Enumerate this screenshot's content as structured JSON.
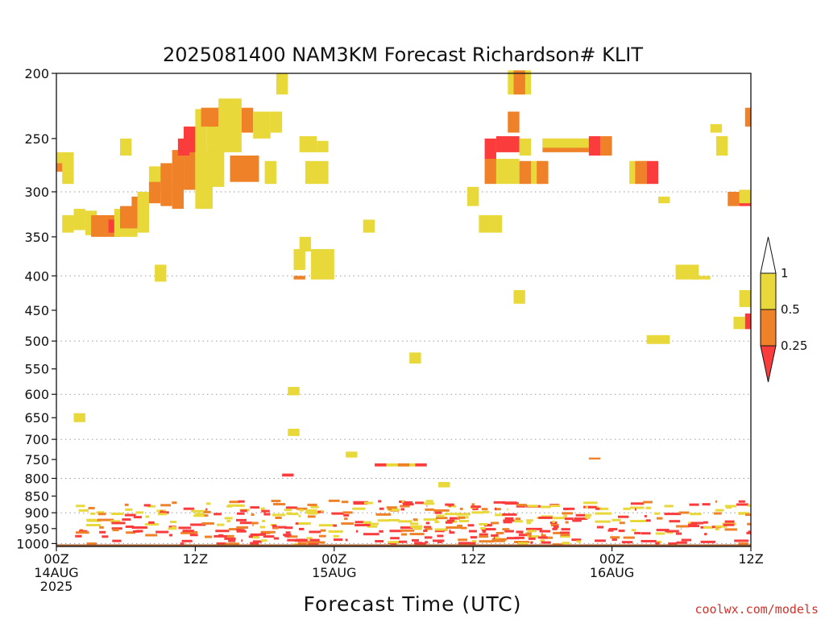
{
  "chart_data": {
    "type": "heatmap",
    "title": "2025081400 NAM3KM Forecast Richardson# KLIT",
    "xlabel": "Forecast Time (UTC)",
    "ylabel": "",
    "x_unit": "forecast hour from 2025-08-14 00Z",
    "xlim": [
      0,
      60
    ],
    "x_ticks": [
      {
        "value": 0,
        "lines": [
          "00Z",
          "14AUG",
          "2025"
        ]
      },
      {
        "value": 12,
        "lines": [
          "12Z"
        ]
      },
      {
        "value": 24,
        "lines": [
          "00Z",
          "15AUG"
        ]
      },
      {
        "value": 36,
        "lines": [
          "12Z"
        ]
      },
      {
        "value": 48,
        "lines": [
          "00Z",
          "16AUG"
        ]
      },
      {
        "value": 60,
        "lines": [
          "12Z"
        ]
      }
    ],
    "y_scale": "log-pressure (hPa, inverted)",
    "ylim": [
      1010,
      200
    ],
    "y_ticks": [
      200,
      250,
      300,
      350,
      400,
      450,
      500,
      550,
      600,
      650,
      700,
      750,
      800,
      850,
      900,
      950,
      1000
    ],
    "gridlines_hPa": [
      300,
      400,
      500,
      600,
      700,
      800,
      900,
      1000
    ],
    "grid": "dotted horizontal",
    "legend": {
      "placement": "right",
      "levels": [
        {
          "label": "1",
          "value": 1,
          "color": "#ffffff"
        },
        {
          "label": "0.5",
          "value": 0.5,
          "color": "#e8d83a"
        },
        {
          "label": "0.25",
          "value": 0.25,
          "color": "#ef8228"
        }
      ],
      "below_color": "#fa3c3c"
    },
    "colors": {
      "yellow": "#e8d83a",
      "orange": "#ef8228",
      "red": "#fa3c3c",
      "ground": "#9e5a2d"
    },
    "cells_note": "each cell: [forecast_hour_start, forecast_hour_end, pressure_top_hPa, pressure_bottom_hPa, category] with category y=0.25-0.5, o=0.25-0.5 orange band, r=below 0.25",
    "cells": [
      [
        0.0,
        1.5,
        262,
        280,
        "y"
      ],
      [
        0.0,
        0.5,
        272,
        280,
        "o"
      ],
      [
        0.5,
        1.5,
        280,
        292,
        "y"
      ],
      [
        0.5,
        1.5,
        325,
        345,
        "y"
      ],
      [
        1.5,
        2.5,
        318,
        342,
        "y"
      ],
      [
        2.5,
        3.5,
        320,
        348,
        "y"
      ],
      [
        3.0,
        5.5,
        325,
        350,
        "o"
      ],
      [
        4.5,
        5.5,
        330,
        345,
        "r"
      ],
      [
        5.0,
        7.0,
        318,
        350,
        "y"
      ],
      [
        5.5,
        7.0,
        315,
        340,
        "o"
      ],
      [
        6.5,
        8.0,
        305,
        338,
        "o"
      ],
      [
        7.0,
        8.0,
        300,
        345,
        "y"
      ],
      [
        5.5,
        6.5,
        250,
        265,
        "y"
      ],
      [
        8.0,
        10.0,
        275,
        300,
        "y"
      ],
      [
        8.0,
        9.0,
        290,
        312,
        "o"
      ],
      [
        9.0,
        10.0,
        272,
        315,
        "o"
      ],
      [
        10.0,
        11.0,
        260,
        318,
        "o"
      ],
      [
        11.0,
        12.0,
        240,
        298,
        "o"
      ],
      [
        10.5,
        11.5,
        250,
        265,
        "r"
      ],
      [
        11.0,
        12.0,
        240,
        262,
        "r"
      ],
      [
        12.0,
        13.5,
        262,
        318,
        "y"
      ],
      [
        12.0,
        13.0,
        226,
        268,
        "y"
      ],
      [
        13.0,
        14.5,
        225,
        295,
        "y"
      ],
      [
        12.5,
        14.0,
        225,
        240,
        "o"
      ],
      [
        14.0,
        15.0,
        218,
        262,
        "y"
      ],
      [
        15.0,
        16.0,
        218,
        262,
        "y"
      ],
      [
        16.0,
        17.0,
        225,
        245,
        "o"
      ],
      [
        15.0,
        17.5,
        265,
        290,
        "o"
      ],
      [
        17.0,
        18.5,
        228,
        250,
        "y"
      ],
      [
        18.0,
        19.0,
        270,
        292,
        "y"
      ],
      [
        18.5,
        19.5,
        228,
        245,
        "y"
      ],
      [
        8.5,
        9.5,
        385,
        408,
        "y"
      ],
      [
        19.0,
        20.0,
        200,
        215,
        "y"
      ],
      [
        20.5,
        21.5,
        365,
        392,
        "y"
      ],
      [
        20.5,
        21.5,
        400,
        405,
        "o"
      ],
      [
        21.0,
        22.0,
        350,
        368,
        "y"
      ],
      [
        21.5,
        23.5,
        270,
        292,
        "y"
      ],
      [
        21.0,
        22.5,
        248,
        262,
        "y"
      ],
      [
        22.5,
        23.5,
        252,
        262,
        "y"
      ],
      [
        22.0,
        24.0,
        365,
        405,
        "y"
      ],
      [
        26.5,
        27.5,
        330,
        345,
        "y"
      ],
      [
        20.0,
        21.0,
        585,
        602,
        "y"
      ],
      [
        20.0,
        21.0,
        675,
        692,
        "y"
      ],
      [
        25.0,
        26.0,
        730,
        745,
        "y"
      ],
      [
        30.5,
        31.5,
        520,
        540,
        "y"
      ],
      [
        1.5,
        2.5,
        640,
        660,
        "y"
      ],
      [
        35.5,
        36.5,
        295,
        315,
        "y"
      ],
      [
        36.5,
        38.5,
        325,
        345,
        "y"
      ],
      [
        37.0,
        38.0,
        250,
        270,
        "r"
      ],
      [
        37.0,
        38.0,
        268,
        292,
        "o"
      ],
      [
        38.0,
        40.0,
        248,
        262,
        "r"
      ],
      [
        38.0,
        40.0,
        268,
        292,
        "y"
      ],
      [
        39.0,
        41.0,
        198,
        215,
        "y"
      ],
      [
        39.5,
        40.5,
        198,
        215,
        "o"
      ],
      [
        39.0,
        40.0,
        228,
        245,
        "o"
      ],
      [
        40.0,
        41.0,
        250,
        265,
        "y"
      ],
      [
        40.0,
        41.0,
        270,
        292,
        "o"
      ],
      [
        41.0,
        42.0,
        270,
        292,
        "y"
      ],
      [
        41.5,
        42.5,
        270,
        292,
        "o"
      ],
      [
        42.0,
        46.0,
        250,
        262,
        "o"
      ],
      [
        42.0,
        46.0,
        250,
        258,
        "y"
      ],
      [
        46.0,
        47.0,
        248,
        265,
        "r"
      ],
      [
        47.0,
        48.0,
        248,
        265,
        "o"
      ],
      [
        39.5,
        40.5,
        420,
        440,
        "y"
      ],
      [
        49.5,
        51.0,
        270,
        292,
        "y"
      ],
      [
        50.0,
        51.0,
        270,
        292,
        "o"
      ],
      [
        51.0,
        52.0,
        270,
        292,
        "r"
      ],
      [
        52.0,
        53.0,
        305,
        312,
        "y"
      ],
      [
        53.5,
        55.5,
        385,
        405,
        "y"
      ],
      [
        55.0,
        56.5,
        400,
        405,
        "y"
      ],
      [
        51.0,
        53.0,
        490,
        505,
        "y"
      ],
      [
        57.0,
        58.0,
        248,
        265,
        "y"
      ],
      [
        56.5,
        57.5,
        238,
        245,
        "y"
      ],
      [
        58.0,
        59.0,
        300,
        315,
        "o"
      ],
      [
        59.0,
        61.0,
        298,
        315,
        "r"
      ],
      [
        59.0,
        61.0,
        298,
        312,
        "y"
      ],
      [
        58.5,
        59.5,
        460,
        480,
        "y"
      ],
      [
        59.5,
        60.5,
        455,
        480,
        "r"
      ],
      [
        60.5,
        61.0,
        460,
        480,
        "o"
      ],
      [
        60.0,
        61.0,
        480,
        500,
        "y"
      ],
      [
        59.0,
        61.0,
        420,
        445,
        "y"
      ],
      [
        59.5,
        60.5,
        225,
        240,
        "o"
      ],
      [
        60.5,
        61.5,
        250,
        265,
        "r"
      ],
      [
        46.0,
        47.0,
        745,
        750,
        "o"
      ],
      [
        27.5,
        28.5,
        760,
        768,
        "r"
      ],
      [
        28.5,
        31.0,
        760,
        768,
        "y"
      ],
      [
        29.5,
        30.5,
        760,
        768,
        "o"
      ],
      [
        31.0,
        32.0,
        760,
        768,
        "r"
      ],
      [
        19.5,
        20.5,
        787,
        795,
        "r"
      ],
      [
        33.0,
        34.0,
        810,
        825,
        "y"
      ]
    ],
    "surface_layer": {
      "top_hPa": 1003,
      "bottom_hPa": 1010,
      "color": "#9e5a2d"
    }
  },
  "credit": "coolwx.com/models"
}
